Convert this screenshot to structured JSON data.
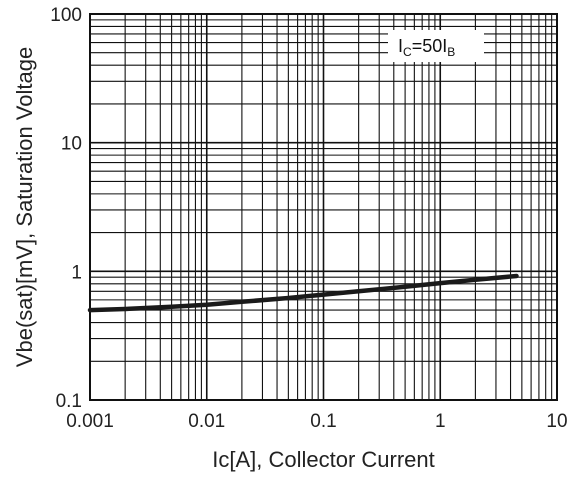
{
  "chart_data": {
    "type": "line",
    "xscale": "log",
    "yscale": "log",
    "xlim": [
      0.001,
      10
    ],
    "ylim": [
      0.1,
      100
    ],
    "xlabel": "Ic[A], Collector Current",
    "ylabel": "Vbe(sat)[mV], Saturation Voltage",
    "x_tick_labels": [
      "0.001",
      "0.01",
      "0.1",
      "1",
      "10"
    ],
    "y_tick_labels": [
      "100",
      "10",
      "1",
      "0.1"
    ],
    "annotation": {
      "main": "I",
      "sub1": "C",
      "mid": "=50I",
      "sub2": "B"
    },
    "grid": true,
    "series": [
      {
        "x": [
          0.001,
          0.002,
          0.005,
          0.01,
          0.02,
          0.05,
          0.1,
          0.2,
          0.5,
          1,
          2,
          4.5
        ],
        "y": [
          0.5,
          0.51,
          0.53,
          0.55,
          0.58,
          0.62,
          0.66,
          0.7,
          0.76,
          0.81,
          0.86,
          0.92
        ]
      }
    ],
    "colors": {
      "line": "#1a1a1a",
      "grid": "#111111"
    }
  }
}
